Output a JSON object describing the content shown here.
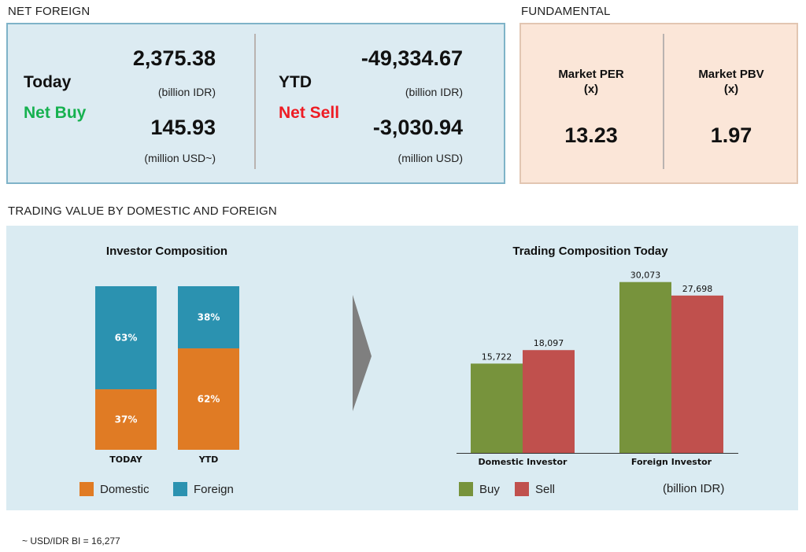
{
  "net_foreign": {
    "section_title": "NET FOREIGN",
    "today": {
      "label": "Today",
      "status": "Net Buy",
      "value_idr": "2,375.38",
      "unit_idr": "(billion IDR)",
      "value_usd": "145.93",
      "unit_usd": "(million USD~)"
    },
    "ytd": {
      "label": "YTD",
      "status": "Net Sell",
      "value_idr": "-49,334.67",
      "unit_idr": "(billion IDR)",
      "value_usd": "-3,030.94",
      "unit_usd": "(million USD)"
    }
  },
  "fundamental": {
    "section_title": "FUNDAMENTAL",
    "per": {
      "label_line1": "Market PER",
      "label_line2": "(x)",
      "value": "13.23"
    },
    "pbv": {
      "label_line1": "Market PBV",
      "label_line2": "(x)",
      "value": "1.97"
    }
  },
  "trading": {
    "section_title": "TRADING VALUE BY DOMESTIC AND FOREIGN",
    "footnote": "~ USD/IDR BI = 16,277"
  },
  "colors": {
    "domestic": "#e07b24",
    "foreign": "#2b92b0",
    "buy": "#77933c",
    "sell": "#c0504d",
    "net_buy": "#16b14f",
    "net_sell": "#ee1c24"
  },
  "chart_data": [
    {
      "type": "bar",
      "stacked": true,
      "percent": true,
      "title": "Investor Composition",
      "categories": [
        "TODAY",
        "YTD"
      ],
      "series": [
        {
          "name": "Domestic",
          "values": [
            37,
            62
          ],
          "labels": [
            "37%",
            "62%"
          ],
          "color": "#e07b24"
        },
        {
          "name": "Foreign",
          "values": [
            63,
            38
          ],
          "labels": [
            "63%",
            "38%"
          ],
          "color": "#2b92b0"
        }
      ],
      "ylim": [
        0,
        100
      ],
      "legend": "bottom"
    },
    {
      "type": "bar",
      "title": "Trading Composition Today",
      "categories": [
        "Domestic Investor",
        "Foreign Investor"
      ],
      "series": [
        {
          "name": "Buy",
          "values": [
            15722,
            30073
          ],
          "labels": [
            "15,722",
            "30,073"
          ],
          "color": "#77933c"
        },
        {
          "name": "Sell",
          "values": [
            18097,
            27698
          ],
          "labels": [
            "18,097",
            "27,698"
          ],
          "color": "#c0504d"
        }
      ],
      "ylim": [
        0,
        31000
      ],
      "unit_note": "(billion IDR)",
      "legend": "bottom"
    }
  ]
}
